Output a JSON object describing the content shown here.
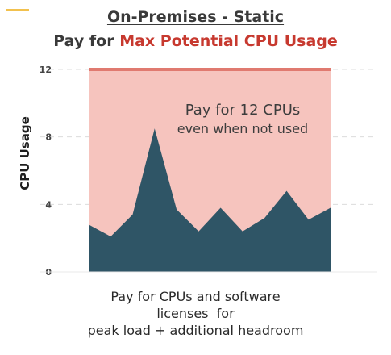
{
  "title": {
    "line1": "On-Premises - Static",
    "line2_prefix": "Pay for ",
    "line2_highlight": "Max Potential CPU Usage"
  },
  "colors": {
    "title_highlight": "#c7392f",
    "fill_area": "#f6c4be",
    "max_line": "#e07a70",
    "usage_area": "#2f5566",
    "accent": "#f2c14e"
  },
  "chart_data": {
    "type": "area",
    "ylabel": "CPU Usage",
    "xlabel": "",
    "ylim": [
      0,
      12
    ],
    "yticks": [
      0,
      4,
      8,
      12
    ],
    "grid": true,
    "max_level": 12,
    "series": [
      {
        "values": [
          2.8,
          2.1,
          3.4,
          8.5,
          3.7,
          2.4,
          3.8,
          2.4,
          3.2,
          4.8,
          3.1,
          3.8
        ]
      }
    ],
    "annotation": {
      "line1": "Pay for 12 CPUs",
      "line2": "even when not used"
    }
  },
  "caption": {
    "line1": "Pay for CPUs and software",
    "line2": "licenses  for",
    "line3": "peak load + additional headroom"
  }
}
